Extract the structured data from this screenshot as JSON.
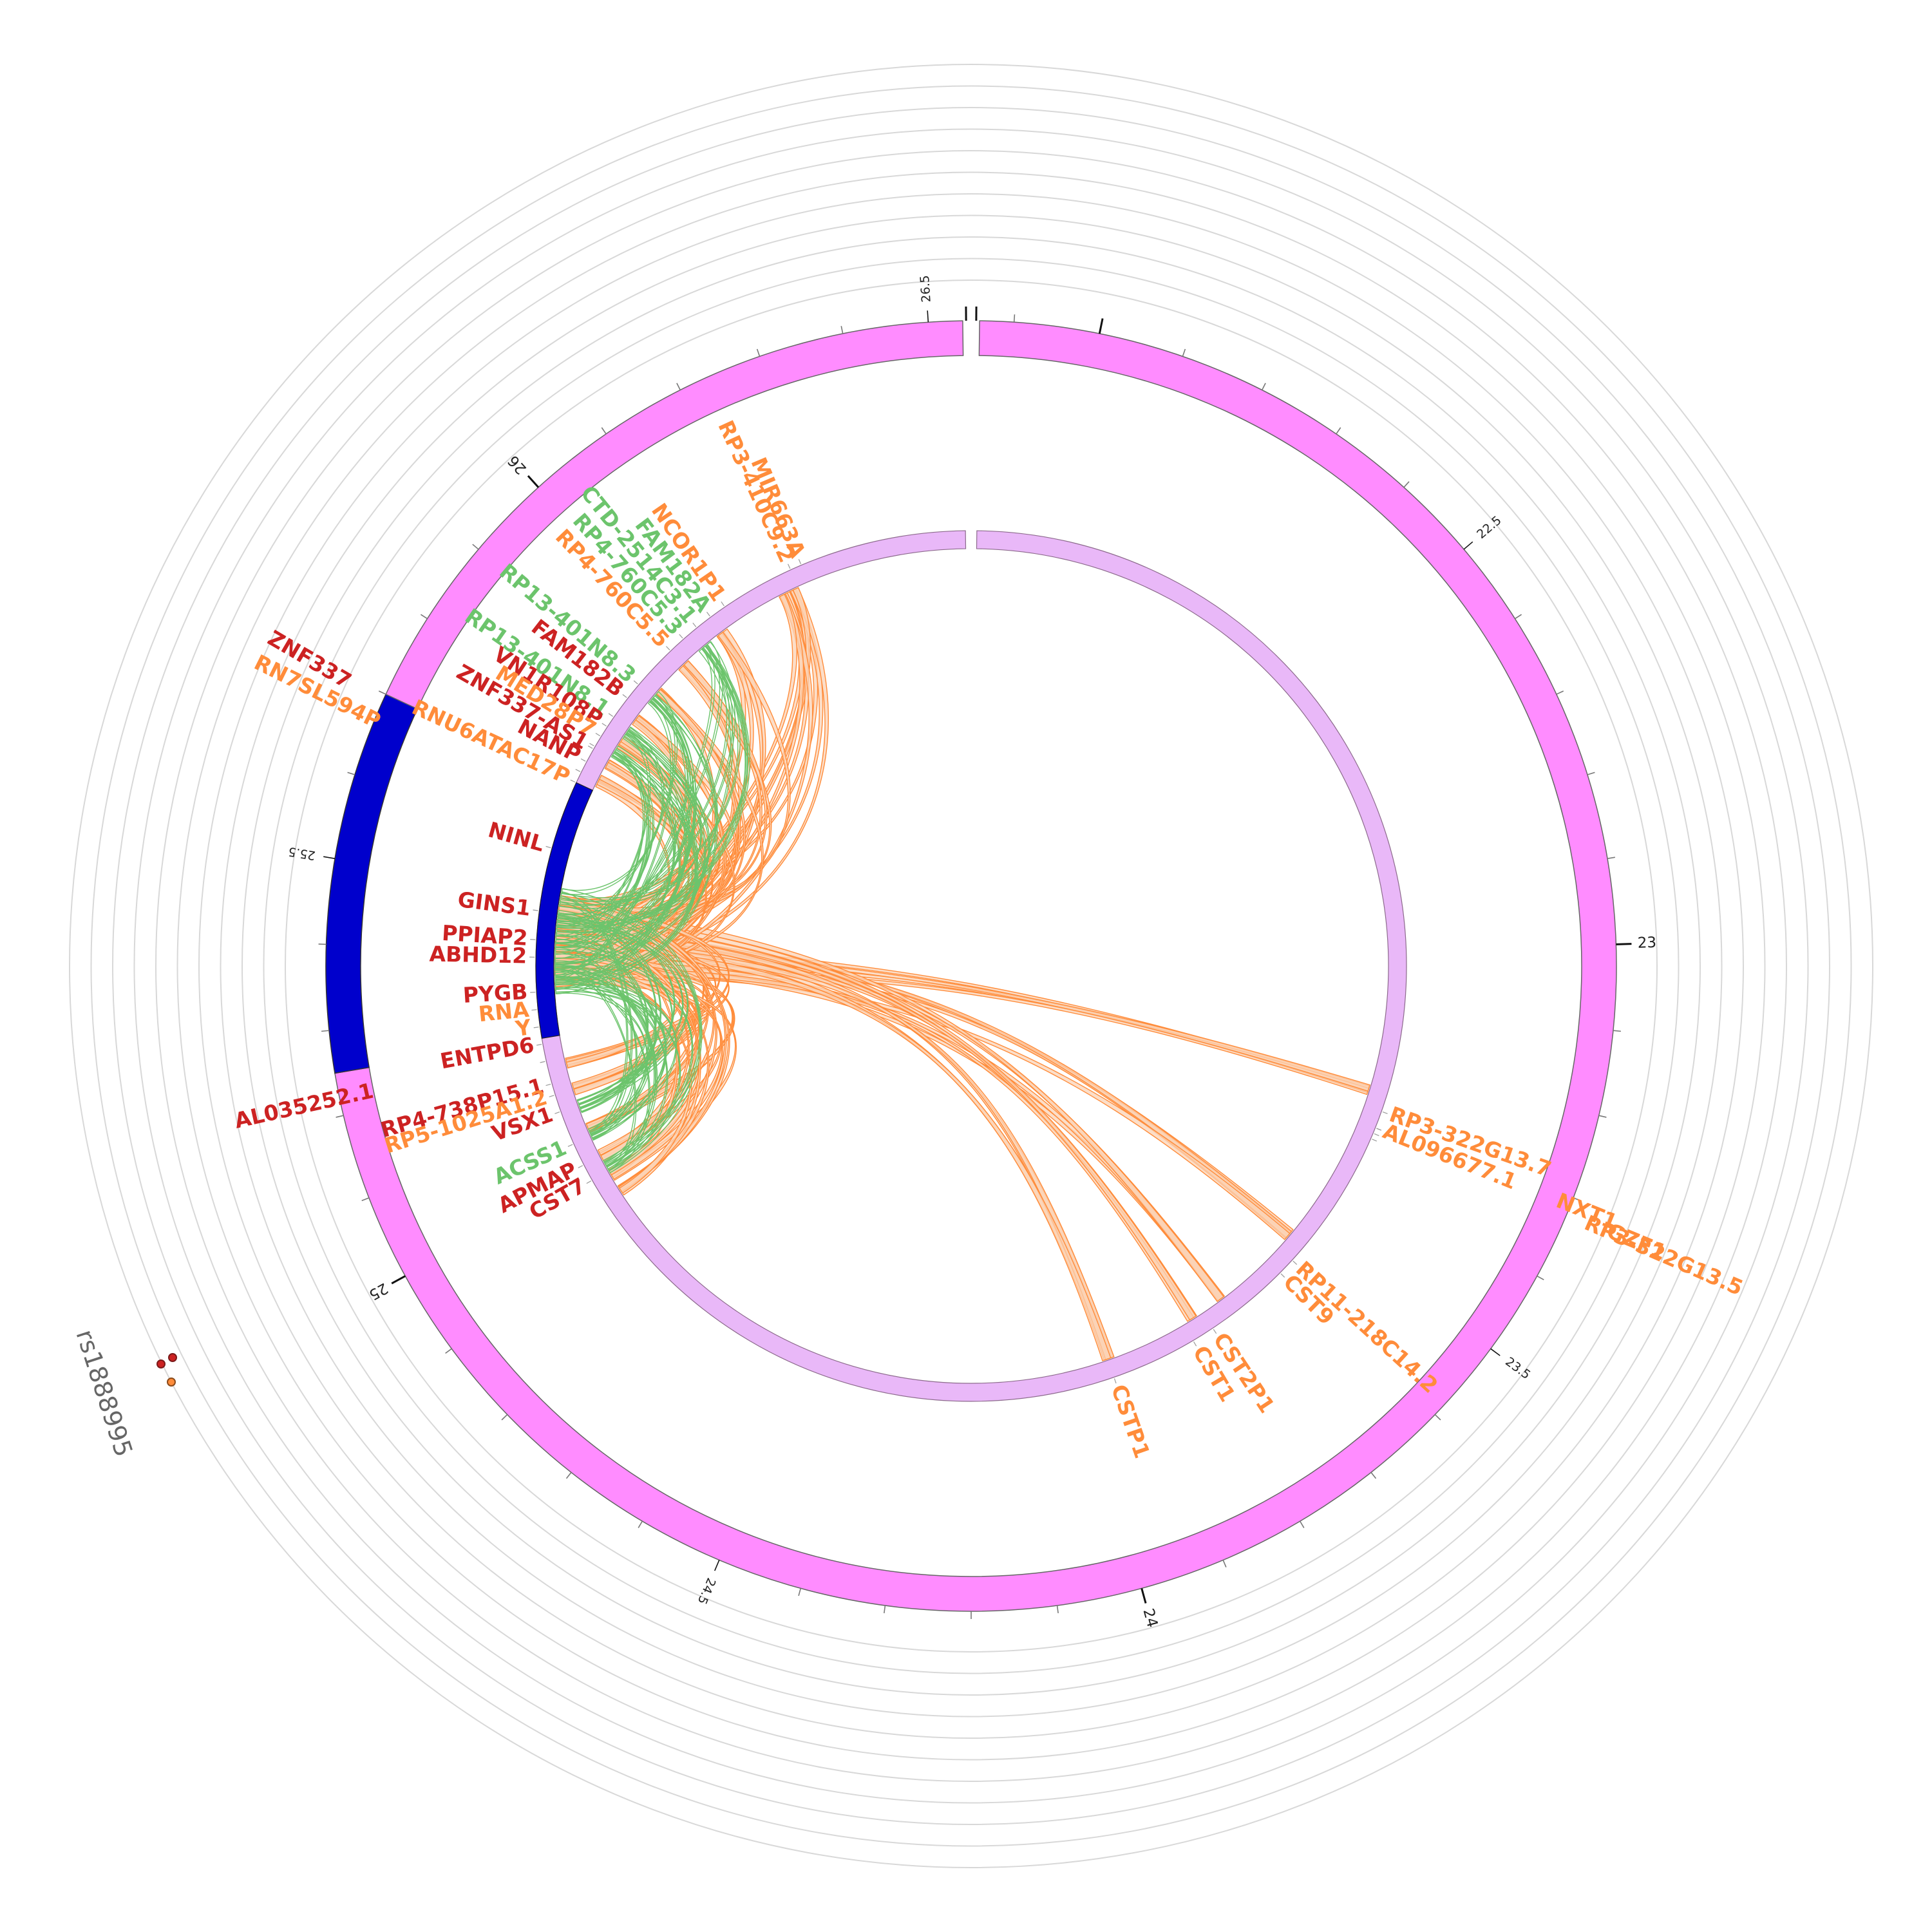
{
  "snp": {
    "label": "rs1888995"
  },
  "colors": {
    "outer_band": "#FF8CFF",
    "outer_highlight": "#0000CC",
    "inner_band": "#E9B8F8",
    "inner_band_stroke": "#8c6a8c",
    "orange": "#FF8C3A",
    "orange_fill": "#FBD3B5",
    "green": "#6CC46C",
    "red": "#CC2222",
    "grid": "#d8d8d8"
  },
  "scale": {
    "start_mb": 21.86,
    "end_mb": 26.54,
    "highlight_mb": [
      25.25,
      25.7
    ],
    "major_ticks": [
      "23",
      "24",
      "25",
      "26"
    ],
    "minor_tick_labels": [
      "22.5",
      "23.5",
      "24.5",
      "25.5",
      "26.5"
    ]
  },
  "genes": [
    {
      "name": "MIR663A",
      "color": "orange"
    },
    {
      "name": "RP3-410C9.2",
      "color": "orange"
    },
    {
      "name": "NCOR1P1",
      "color": "orange"
    },
    {
      "name": "FAM182A",
      "color": "green"
    },
    {
      "name": "CTD-2514C3.1",
      "color": "green"
    },
    {
      "name": "RP4-760C5.3",
      "color": "green"
    },
    {
      "name": "RP4-760C5.5",
      "color": "orange"
    },
    {
      "name": "RP13-401N8.3",
      "color": "green"
    },
    {
      "name": "FAM182B",
      "color": "red"
    },
    {
      "name": "RP13-401N8.1",
      "color": "green"
    },
    {
      "name": "VN1R108P",
      "color": "red"
    },
    {
      "name": "MED28P7",
      "color": "orange"
    },
    {
      "name": "ZNF337",
      "color": "red"
    },
    {
      "name": "ZNF337-AS1",
      "color": "red"
    },
    {
      "name": "NANP",
      "color": "red"
    },
    {
      "name": "RN7SL594P",
      "color": "orange"
    },
    {
      "name": "RNU6ATAC17P",
      "color": "orange"
    },
    {
      "name": "NINL",
      "color": "red"
    },
    {
      "name": "GINS1",
      "color": "red"
    },
    {
      "name": "PPIAP2",
      "color": "red"
    },
    {
      "name": "ABHD12",
      "color": "red"
    },
    {
      "name": "PYGB",
      "color": "red"
    },
    {
      "name": "RNA",
      "color": "orange"
    },
    {
      "name": "Y",
      "color": "orange"
    },
    {
      "name": "ENTPD6",
      "color": "red"
    },
    {
      "name": "AL035252.1",
      "color": "red"
    },
    {
      "name": "RP4-738P15.1",
      "color": "red"
    },
    {
      "name": "RP5-1025A1.2",
      "color": "orange"
    },
    {
      "name": "VSX1",
      "color": "red"
    },
    {
      "name": "ACSS1",
      "color": "green"
    },
    {
      "name": "APMAP",
      "color": "red"
    },
    {
      "name": "CST7",
      "color": "red"
    },
    {
      "name": "CSTP1",
      "color": "orange"
    },
    {
      "name": "CST1",
      "color": "orange"
    },
    {
      "name": "CST2P1",
      "color": "orange"
    },
    {
      "name": "CST9",
      "color": "orange"
    },
    {
      "name": "RP11-218C14.2",
      "color": "orange"
    },
    {
      "name": "RP3-322G13.5",
      "color": "orange"
    },
    {
      "name": "AL096677.1",
      "color": "orange"
    },
    {
      "name": "RP3-322G13.7",
      "color": "orange"
    },
    {
      "name": "NXT1",
      "color": "orange"
    },
    {
      "name": "GZF1",
      "color": "orange"
    }
  ]
}
